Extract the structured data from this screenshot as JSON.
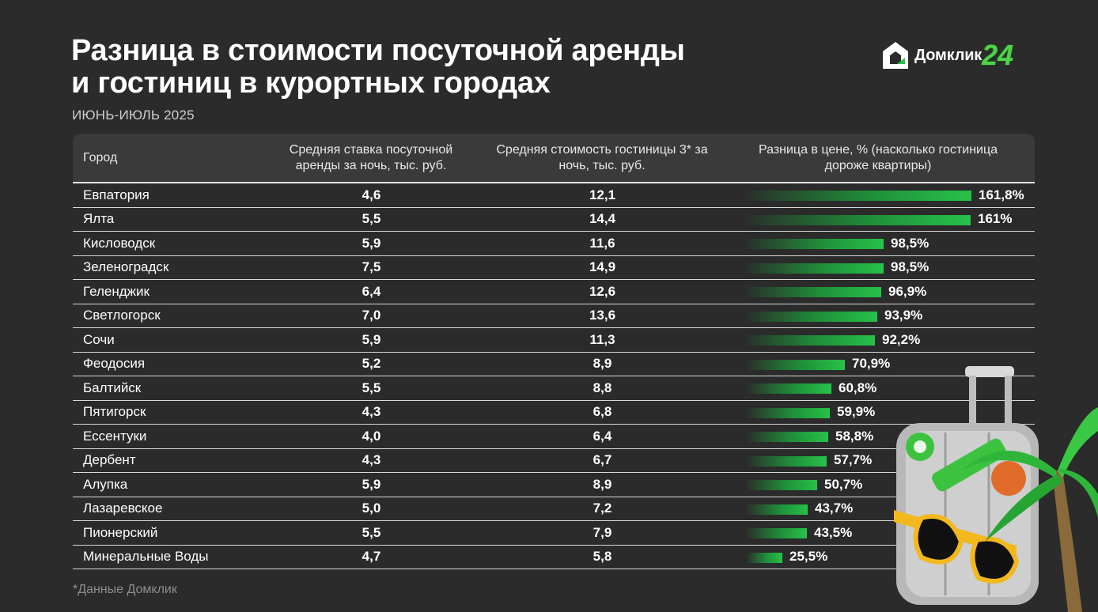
{
  "title_line1": "Разница в стоимости посуточной аренды",
  "title_line2": "и гостиниц в курортных городах",
  "subtitle": "ИЮНЬ-ИЮЛЬ 2025",
  "logo": {
    "text": "Домклик",
    "badge": "24",
    "icon": "house-logo-icon"
  },
  "columns": [
    "Город",
    "Средняя ставка посуточной аренды за ночь, тыс. руб.",
    "Средняя стоимость гостиницы 3* за ночь, тыс. руб.",
    "Разница в цене, % (насколько гостиница дороже квартиры)"
  ],
  "footnote": "*Данные Домклик",
  "colors": {
    "background": "#2b2b2b",
    "bar": "#27c14a",
    "accent": "#4fd24a"
  },
  "chart_data": {
    "type": "table",
    "bar_column": "Разница в цене, %",
    "bar_max": 161.8,
    "rows": [
      {
        "city": "Евпатория",
        "rent": "4,6",
        "hotel": "12,1",
        "diff": 161.8,
        "diff_label": "161,8%"
      },
      {
        "city": "Ялта",
        "rent": "5,5",
        "hotel": "14,4",
        "diff": 161.0,
        "diff_label": "161%"
      },
      {
        "city": "Кисловодск",
        "rent": "5,9",
        "hotel": "11,6",
        "diff": 98.5,
        "diff_label": "98,5%"
      },
      {
        "city": "Зеленоградск",
        "rent": "7,5",
        "hotel": "14,9",
        "diff": 98.5,
        "diff_label": "98,5%"
      },
      {
        "city": "Геленджик",
        "rent": "6,4",
        "hotel": "12,6",
        "diff": 96.9,
        "diff_label": "96,9%"
      },
      {
        "city": "Светлогорск",
        "rent": "7,0",
        "hotel": "13,6",
        "diff": 93.9,
        "diff_label": "93,9%"
      },
      {
        "city": "Сочи",
        "rent": "5,9",
        "hotel": "11,3",
        "diff": 92.2,
        "diff_label": "92,2%"
      },
      {
        "city": "Феодосия",
        "rent": "5,2",
        "hotel": "8,9",
        "diff": 70.9,
        "diff_label": "70,9%"
      },
      {
        "city": "Балтийск",
        "rent": "5,5",
        "hotel": "8,8",
        "diff": 60.8,
        "diff_label": "60,8%"
      },
      {
        "city": "Пятигорск",
        "rent": "4,3",
        "hotel": "6,8",
        "diff": 59.9,
        "diff_label": "59,9%"
      },
      {
        "city": "Ессентуки",
        "rent": "4,0",
        "hotel": "6,4",
        "diff": 58.8,
        "diff_label": "58,8%"
      },
      {
        "city": "Дербент",
        "rent": "4,3",
        "hotel": "6,7",
        "diff": 57.7,
        "diff_label": "57,7%"
      },
      {
        "city": "Алупка",
        "rent": "5,9",
        "hotel": "8,9",
        "diff": 50.7,
        "diff_label": "50,7%"
      },
      {
        "city": "Лазаревское",
        "rent": "5,0",
        "hotel": "7,2",
        "diff": 43.7,
        "diff_label": "43,7%"
      },
      {
        "city": "Пионерский",
        "rent": "5,5",
        "hotel": "7,9",
        "diff": 43.5,
        "diff_label": "43,5%"
      },
      {
        "city": "Минеральные Воды",
        "rent": "4,7",
        "hotel": "5,8",
        "diff": 25.5,
        "diff_label": "25,5%"
      }
    ]
  }
}
